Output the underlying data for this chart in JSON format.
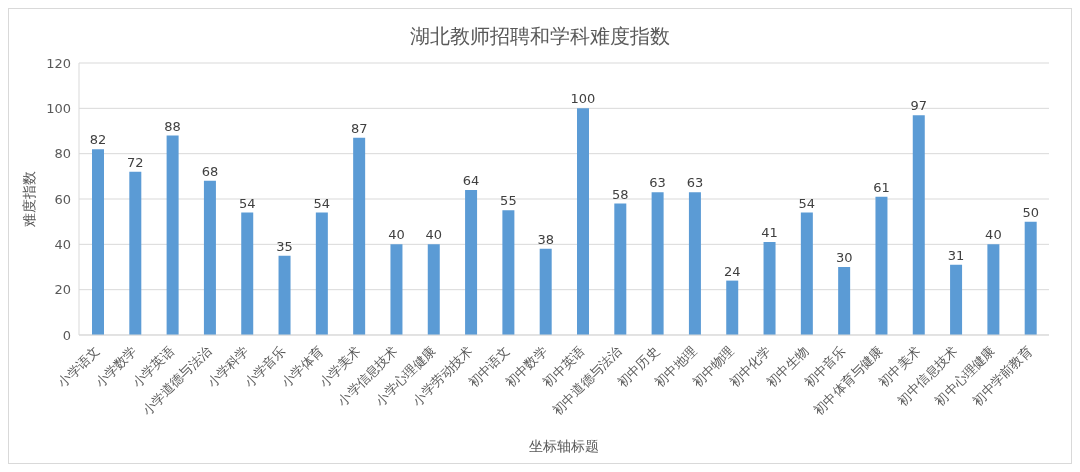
{
  "chart_data": {
    "type": "bar",
    "title": "湖北教师招聘和学科难度指数",
    "xlabel": "坐标轴标题",
    "ylabel": "难度指数",
    "categories": [
      "小学语文",
      "小学数学",
      "小学英语",
      "小学道德与法治",
      "小学科学",
      "小学音乐",
      "小学体育",
      "小学美术",
      "小学信息技术",
      "小学心理健康",
      "小学劳动技术",
      "初中语文",
      "初中数学",
      "初中英语",
      "初中道德与法治",
      "初中历史",
      "初中地理",
      "初中物理",
      "初中化学",
      "初中生物",
      "初中音乐",
      "初中体育与健康",
      "初中美术",
      "初中信息技术",
      "初中心理健康",
      "初中学前教育"
    ],
    "values": [
      82,
      72,
      88,
      68,
      54,
      35,
      54,
      87,
      40,
      40,
      64,
      55,
      38,
      100,
      58,
      63,
      63,
      24,
      41,
      54,
      30,
      61,
      97,
      31,
      40,
      50
    ],
    "color": "#5b9bd5",
    "ylim": [
      0,
      120
    ],
    "yticks": [
      0,
      20,
      40,
      60,
      80,
      100,
      120
    ],
    "grid": "y",
    "data_labels": true
  }
}
